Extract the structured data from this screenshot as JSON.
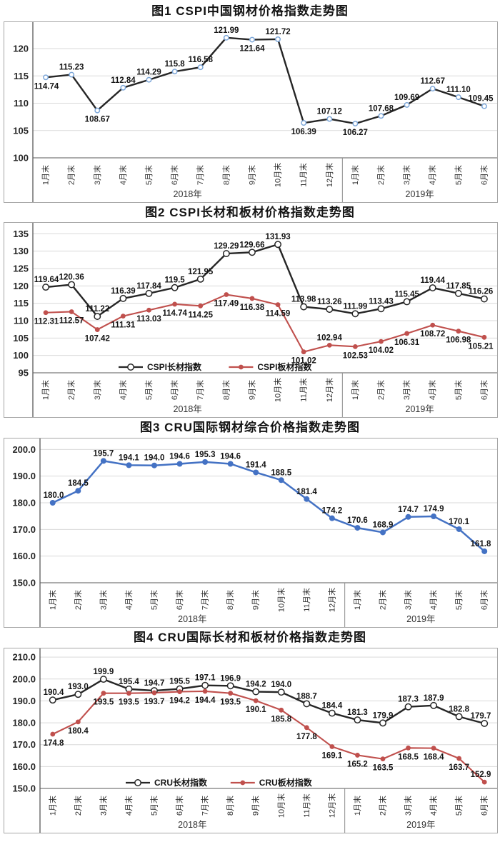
{
  "accent_colors": {
    "black_series": "#262626",
    "red_series": "#c0504d",
    "blue_series": "#4472c4",
    "grid": "#d9d9d9",
    "axis": "#595959"
  },
  "chart_data": [
    {
      "id": "chart1",
      "type": "line",
      "title": "图1 CSPI中国钢材价格指数走势图",
      "categories": [
        "1月末",
        "2月末",
        "3月末",
        "4月末",
        "5月末",
        "6月末",
        "7月末",
        "8月末",
        "9月末",
        "10月末",
        "11月末",
        "12月末",
        "1月末",
        "2月末",
        "3月末",
        "4月末",
        "5月末",
        "6月末"
      ],
      "year_groups": [
        {
          "label": "2018年",
          "count": 12
        },
        {
          "label": "2019年",
          "count": 6
        }
      ],
      "ylim": [
        100,
        123.8
      ],
      "yticks": [
        "100",
        "105",
        "110",
        "115",
        "120"
      ],
      "grid": true,
      "legend": false,
      "series": [
        {
          "name": "",
          "line_color": "#262626",
          "marker": "open",
          "marker_color": "#7da7d9",
          "marker_r": 3.2,
          "line_width": 2.4,
          "values": [
            114.74,
            115.23,
            108.67,
            112.84,
            114.29,
            115.8,
            116.58,
            121.99,
            121.64,
            121.72,
            106.39,
            107.12,
            106.27,
            107.68,
            109.69,
            112.67,
            111.1,
            109.45
          ],
          "point_labels": [
            "114.74",
            "115.23",
            "108.67",
            "112.84",
            "114.29",
            "115.8",
            "116.58",
            "121.99",
            "121.64",
            "121.72",
            "106.39",
            "107.12",
            "106.27",
            "107.68",
            "109.69",
            "112.67",
            "111.10",
            "109.45"
          ],
          "label_pos": [
            "b",
            "a",
            "b",
            "a",
            "a",
            "a",
            "a",
            "a",
            "b",
            "a",
            "b",
            "a",
            "b",
            "a",
            "a",
            "a",
            "a",
            "a"
          ]
        }
      ]
    },
    {
      "id": "chart2",
      "type": "line",
      "title": "图2 CSPI长材和板材价格指数走势图",
      "categories": [
        "1月末",
        "2月末",
        "3月末",
        "4月末",
        "5月末",
        "6月末",
        "7月末",
        "8月末",
        "9月末",
        "10月末",
        "11月末",
        "12月末",
        "1月末",
        "2月末",
        "3月末",
        "4月末",
        "5月末",
        "6月末"
      ],
      "year_groups": [
        {
          "label": "2018年",
          "count": 12
        },
        {
          "label": "2019年",
          "count": 6
        }
      ],
      "ylim": [
        95,
        136.5
      ],
      "yticks": [
        "95",
        "100",
        "105",
        "110",
        "115",
        "120",
        "125",
        "130",
        "135"
      ],
      "grid": true,
      "legend": true,
      "series": [
        {
          "name": "CSPI长材指数",
          "line_color": "#262626",
          "marker": "open",
          "marker_color": "#262626",
          "marker_r": 4.2,
          "line_width": 2.4,
          "values": [
            119.64,
            120.36,
            111.22,
            116.39,
            117.84,
            119.5,
            121.95,
            129.29,
            129.66,
            131.93,
            113.98,
            113.26,
            111.99,
            113.43,
            115.45,
            119.44,
            117.85,
            116.26
          ],
          "point_labels": [
            "119.64",
            "120.36",
            "111.22",
            "116.39",
            "117.84",
            "119.5",
            "121.95",
            "129.29",
            "129.66",
            "131.93",
            "113.98",
            "113.26",
            "111.99",
            "113.43",
            "115.45",
            "119.44",
            "117.85",
            "116.26"
          ],
          "label_pos": [
            "a",
            "a",
            "a",
            "a",
            "a",
            "a",
            "a",
            "a",
            "a",
            "a",
            "a",
            "a",
            "a",
            "a",
            "a",
            "a",
            "a",
            "a"
          ]
        },
        {
          "name": "CSPI板材指数",
          "line_color": "#c0504d",
          "marker": "filled",
          "marker_color": "#c0504d",
          "marker_r": 3.4,
          "line_width": 2.1,
          "values": [
            112.31,
            112.57,
            107.42,
            111.31,
            113.03,
            114.74,
            114.25,
            117.49,
            116.38,
            114.59,
            101.02,
            102.94,
            102.53,
            104.02,
            106.31,
            108.72,
            106.98,
            105.21
          ],
          "point_labels": [
            "112.31",
            "112.57",
            "107.42",
            "111.31",
            "113.03",
            "114.74",
            "114.25",
            "117.49",
            "116.38",
            "114.59",
            "101.02",
            "102.94",
            "102.53",
            "104.02",
            "106.31",
            "108.72",
            "106.98",
            "105.21"
          ],
          "label_pos": [
            "b",
            "b",
            "b",
            "b",
            "b",
            "b",
            "b",
            "b",
            "b",
            "b",
            "b",
            "a",
            "b",
            "b",
            "b",
            "b",
            "b",
            "b"
          ]
        }
      ]
    },
    {
      "id": "chart3",
      "type": "line",
      "title": "图3 CRU国际钢材综合价格指数走势图",
      "categories": [
        "1月末",
        "2月末",
        "3月末",
        "4月末",
        "5月末",
        "6月末",
        "7月末",
        "8月末",
        "9月末",
        "10月末",
        "11月末",
        "12月末",
        "1月末",
        "2月末",
        "3月末",
        "4月末",
        "5月末",
        "6月末"
      ],
      "year_groups": [
        {
          "label": "2018年",
          "count": 12
        },
        {
          "label": "2019年",
          "count": 6
        }
      ],
      "ylim": [
        150,
        202.5
      ],
      "yticks": [
        "150.0",
        "160.0",
        "170.0",
        "180.0",
        "190.0",
        "200.0"
      ],
      "grid": true,
      "legend": false,
      "series": [
        {
          "name": "",
          "line_color": "#4472c4",
          "marker": "filled",
          "marker_color": "#4472c4",
          "marker_r": 4,
          "line_width": 2.5,
          "values": [
            180,
            184.5,
            195.7,
            194.1,
            194,
            194.6,
            195.3,
            194.6,
            191.4,
            188.5,
            181.4,
            174.2,
            170.6,
            168.9,
            174.7,
            174.9,
            170.1,
            161.8
          ],
          "point_labels": [
            "180.0",
            "184.5",
            "195.7",
            "194.1",
            "194.0",
            "194.6",
            "195.3",
            "194.6",
            "191.4",
            "188.5",
            "181.4",
            "174.2",
            "170.6",
            "168.9",
            "174.7",
            "174.9",
            "170.1",
            "161.8"
          ],
          "label_pos": [
            "a",
            "a",
            "a",
            "a",
            "a",
            "a",
            "a",
            "a",
            "a",
            "a",
            "a",
            "a",
            "a",
            "a",
            "a",
            "a",
            "a",
            "a"
          ]
        }
      ]
    },
    {
      "id": "chart4",
      "type": "line",
      "title": "图4 CRU国际长材和板材价格指数走势图",
      "categories": [
        "1月末",
        "2月末",
        "3月末",
        "4月末",
        "5月末",
        "6月末",
        "7月末",
        "8月末",
        "9月末",
        "10月末",
        "11月末",
        "12月末",
        "1月末",
        "2月末",
        "3月末",
        "4月末",
        "5月末",
        "6月末"
      ],
      "year_groups": [
        {
          "label": "2018年",
          "count": 12
        },
        {
          "label": "2019年",
          "count": 6
        }
      ],
      "ylim": [
        150,
        212
      ],
      "yticks": [
        "150.0",
        "160.0",
        "170.0",
        "180.0",
        "190.0",
        "200.0",
        "210.0"
      ],
      "grid": true,
      "legend": true,
      "series": [
        {
          "name": "CRU长材指数",
          "line_color": "#262626",
          "marker": "open",
          "marker_color": "#262626",
          "marker_r": 4.2,
          "line_width": 2.4,
          "values": [
            190.4,
            193,
            199.9,
            195.4,
            194.7,
            195.5,
            197.1,
            196.9,
            194.2,
            194,
            188.7,
            184.4,
            181.3,
            179.9,
            187.3,
            187.9,
            182.8,
            179.7
          ],
          "point_labels": [
            "190.4",
            "193.0",
            "199.9",
            "195.4",
            "194.7",
            "195.5",
            "197.1",
            "196.9",
            "194.2",
            "194.0",
            "188.7",
            "184.4",
            "181.3",
            "179.9",
            "187.3",
            "187.9",
            "182.8",
            "179.7"
          ],
          "label_pos": [
            "a",
            "a",
            "a",
            "a",
            "a",
            "a",
            "a",
            "a",
            "a",
            "a",
            "a",
            "a",
            "a",
            "a",
            "a",
            "a",
            "a",
            "a"
          ]
        },
        {
          "name": "CRU板材指数",
          "line_color": "#c0504d",
          "marker": "filled",
          "marker_color": "#c0504d",
          "marker_r": 3.4,
          "line_width": 2.1,
          "values": [
            174.8,
            180.4,
            193.5,
            193.5,
            193.7,
            194.2,
            194.4,
            193.5,
            190.1,
            185.8,
            177.8,
            169.1,
            165.2,
            163.5,
            168.5,
            168.4,
            163.7,
            152.9
          ],
          "point_labels": [
            "174.8",
            "180.4",
            "193.5",
            "193.5",
            "193.7",
            "194.2",
            "194.4",
            "193.5",
            "190.1",
            "185.8",
            "177.8",
            "169.1",
            "165.2",
            "163.5",
            "168.5",
            "168.4",
            "163.7",
            "152.9"
          ],
          "label_pos": [
            "b",
            "b",
            "b",
            "b",
            "b",
            "b",
            "b",
            "b",
            "b",
            "b",
            "b",
            "b",
            "b",
            "b",
            "b",
            "b",
            "b",
            "a"
          ]
        }
      ]
    }
  ]
}
